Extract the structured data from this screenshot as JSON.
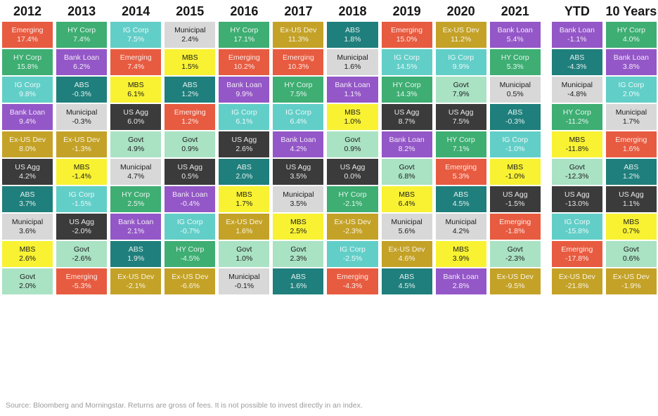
{
  "footer": {
    "source": "Source: Bloomberg and Morningstar. Returns are gross of fees. It is not possible to invest directly in an index."
  },
  "chart_data": {
    "type": "table",
    "description": "Periodic table of fixed-income asset class returns, ranked best to worst within each column",
    "legend_position": "none",
    "asset_styles": {
      "Emerging": {
        "bg": "#E75B40",
        "text": "light"
      },
      "HY Corp": {
        "bg": "#3EAE73",
        "text": "light"
      },
      "IG Corp": {
        "bg": "#62CEC8",
        "text": "light"
      },
      "Bank Loan": {
        "bg": "#9457C7",
        "text": "light"
      },
      "Ex-US Dev": {
        "bg": "#C4A227",
        "text": "light"
      },
      "US Agg": {
        "bg": "#3B3B3B",
        "text": "light"
      },
      "ABS": {
        "bg": "#1F7F7C",
        "text": "light"
      },
      "Municipal": {
        "bg": "#D8D8D8",
        "text": "dark"
      },
      "MBS": {
        "bg": "#F8F233",
        "text": "dark"
      },
      "Govt": {
        "bg": "#AAE2C4",
        "text": "dark"
      }
    },
    "columns": [
      {
        "label": "2012",
        "cells": [
          {
            "asset": "Emerging",
            "value": "17.4%"
          },
          {
            "asset": "HY Corp",
            "value": "15.8%"
          },
          {
            "asset": "IG Corp",
            "value": "9.8%"
          },
          {
            "asset": "Bank Loan",
            "value": "9.4%"
          },
          {
            "asset": "Ex-US Dev",
            "value": "8.0%"
          },
          {
            "asset": "US Agg",
            "value": "4.2%"
          },
          {
            "asset": "ABS",
            "value": "3.7%"
          },
          {
            "asset": "Municipal",
            "value": "3.6%"
          },
          {
            "asset": "MBS",
            "value": "2.6%"
          },
          {
            "asset": "Govt",
            "value": "2.0%"
          }
        ]
      },
      {
        "label": "2013",
        "cells": [
          {
            "asset": "HY Corp",
            "value": "7.4%"
          },
          {
            "asset": "Bank Loan",
            "value": "6.2%"
          },
          {
            "asset": "ABS",
            "value": "-0.3%"
          },
          {
            "asset": "Municipal",
            "value": "-0.3%"
          },
          {
            "asset": "Ex-US Dev",
            "value": "-1.3%"
          },
          {
            "asset": "MBS",
            "value": "-1.4%"
          },
          {
            "asset": "IG Corp",
            "value": "-1.5%"
          },
          {
            "asset": "US Agg",
            "value": "-2.0%"
          },
          {
            "asset": "Govt",
            "value": "-2.6%"
          },
          {
            "asset": "Emerging",
            "value": "-5.3%"
          }
        ]
      },
      {
        "label": "2014",
        "cells": [
          {
            "asset": "IG Corp",
            "value": "7.5%"
          },
          {
            "asset": "Emerging",
            "value": "7.4%"
          },
          {
            "asset": "MBS",
            "value": "6.1%"
          },
          {
            "asset": "US Agg",
            "value": "6.0%"
          },
          {
            "asset": "Govt",
            "value": "4.9%"
          },
          {
            "asset": "Municipal",
            "value": "4.7%"
          },
          {
            "asset": "HY Corp",
            "value": "2.5%"
          },
          {
            "asset": "Bank Loan",
            "value": "2.1%"
          },
          {
            "asset": "ABS",
            "value": "1.9%"
          },
          {
            "asset": "Ex-US Dev",
            "value": "-2.1%"
          }
        ]
      },
      {
        "label": "2015",
        "cells": [
          {
            "asset": "Municipal",
            "value": "2.4%"
          },
          {
            "asset": "MBS",
            "value": "1.5%"
          },
          {
            "asset": "ABS",
            "value": "1.2%"
          },
          {
            "asset": "Emerging",
            "value": "1.2%"
          },
          {
            "asset": "Govt",
            "value": "0.9%"
          },
          {
            "asset": "US Agg",
            "value": "0.5%"
          },
          {
            "asset": "Bank Loan",
            "value": "-0.4%"
          },
          {
            "asset": "IG Corp",
            "value": "-0.7%"
          },
          {
            "asset": "HY Corp",
            "value": "-4.5%"
          },
          {
            "asset": "Ex-US Dev",
            "value": "-6.6%"
          }
        ]
      },
      {
        "label": "2016",
        "cells": [
          {
            "asset": "HY Corp",
            "value": "17.1%"
          },
          {
            "asset": "Emerging",
            "value": "10.2%"
          },
          {
            "asset": "Bank Loan",
            "value": "9.9%"
          },
          {
            "asset": "IG Corp",
            "value": "6.1%"
          },
          {
            "asset": "US Agg",
            "value": "2.6%"
          },
          {
            "asset": "ABS",
            "value": "2.0%"
          },
          {
            "asset": "MBS",
            "value": "1.7%"
          },
          {
            "asset": "Ex-US Dev",
            "value": "1.6%"
          },
          {
            "asset": "Govt",
            "value": "1.0%"
          },
          {
            "asset": "Municipal",
            "value": "-0.1%"
          }
        ]
      },
      {
        "label": "2017",
        "cells": [
          {
            "asset": "Ex-US Dev",
            "value": "11.3%"
          },
          {
            "asset": "Emerging",
            "value": "10.3%"
          },
          {
            "asset": "HY Corp",
            "value": "7.5%"
          },
          {
            "asset": "IG Corp",
            "value": "6.4%"
          },
          {
            "asset": "Bank Loan",
            "value": "4.2%"
          },
          {
            "asset": "US Agg",
            "value": "3.5%"
          },
          {
            "asset": "Municipal",
            "value": "3.5%"
          },
          {
            "asset": "MBS",
            "value": "2.5%"
          },
          {
            "asset": "Govt",
            "value": "2.3%"
          },
          {
            "asset": "ABS",
            "value": "1.6%"
          }
        ]
      },
      {
        "label": "2018",
        "cells": [
          {
            "asset": "ABS",
            "value": "1.8%"
          },
          {
            "asset": "Municipal",
            "value": "1.6%"
          },
          {
            "asset": "Bank Loan",
            "value": "1.1%"
          },
          {
            "asset": "MBS",
            "value": "1.0%"
          },
          {
            "asset": "Govt",
            "value": "0.9%"
          },
          {
            "asset": "US Agg",
            "value": "0.0%"
          },
          {
            "asset": "HY Corp",
            "value": "-2.1%"
          },
          {
            "asset": "Ex-US Dev",
            "value": "-2.3%"
          },
          {
            "asset": "IG Corp",
            "value": "-2.5%"
          },
          {
            "asset": "Emerging",
            "value": "-4.3%"
          }
        ]
      },
      {
        "label": "2019",
        "cells": [
          {
            "asset": "Emerging",
            "value": "15.0%"
          },
          {
            "asset": "IG Corp",
            "value": "14.5%"
          },
          {
            "asset": "HY Corp",
            "value": "14.3%"
          },
          {
            "asset": "US Agg",
            "value": "8.7%"
          },
          {
            "asset": "Bank Loan",
            "value": "8.2%"
          },
          {
            "asset": "Govt",
            "value": "6.8%"
          },
          {
            "asset": "MBS",
            "value": "6.4%"
          },
          {
            "asset": "Municipal",
            "value": "5.6%"
          },
          {
            "asset": "Ex-US Dev",
            "value": "4.6%"
          },
          {
            "asset": "ABS",
            "value": "4.5%"
          }
        ]
      },
      {
        "label": "2020",
        "cells": [
          {
            "asset": "Ex-US Dev",
            "value": "11.2%"
          },
          {
            "asset": "IG Corp",
            "value": "9.9%"
          },
          {
            "asset": "Govt",
            "value": "7.9%"
          },
          {
            "asset": "US Agg",
            "value": "7.5%"
          },
          {
            "asset": "HY Corp",
            "value": "7.1%"
          },
          {
            "asset": "Emerging",
            "value": "5.3%"
          },
          {
            "asset": "ABS",
            "value": "4.5%"
          },
          {
            "asset": "Municipal",
            "value": "4.2%"
          },
          {
            "asset": "MBS",
            "value": "3.9%"
          },
          {
            "asset": "Bank Loan",
            "value": "2.8%"
          }
        ]
      },
      {
        "label": "2021",
        "cells": [
          {
            "asset": "Bank Loan",
            "value": "5.4%"
          },
          {
            "asset": "HY Corp",
            "value": "5.3%"
          },
          {
            "asset": "Municipal",
            "value": "0.5%"
          },
          {
            "asset": "ABS",
            "value": "-0.3%"
          },
          {
            "asset": "IG Corp",
            "value": "-1.0%"
          },
          {
            "asset": "MBS",
            "value": "-1.0%"
          },
          {
            "asset": "US Agg",
            "value": "-1.5%"
          },
          {
            "asset": "Emerging",
            "value": "-1.8%"
          },
          {
            "asset": "Govt",
            "value": "-2.3%"
          },
          {
            "asset": "Ex-US Dev",
            "value": "-9.5%"
          }
        ]
      },
      {
        "label": "YTD",
        "cells": [
          {
            "asset": "Bank Loan",
            "value": "-1.1%"
          },
          {
            "asset": "ABS",
            "value": "-4.3%"
          },
          {
            "asset": "Municipal",
            "value": "-4.8%"
          },
          {
            "asset": "HY Corp",
            "value": "-11.2%"
          },
          {
            "asset": "MBS",
            "value": "-11.8%"
          },
          {
            "asset": "Govt",
            "value": "-12.3%"
          },
          {
            "asset": "US Agg",
            "value": "-13.0%"
          },
          {
            "asset": "IG Corp",
            "value": "-15.8%"
          },
          {
            "asset": "Emerging",
            "value": "-17.8%"
          },
          {
            "asset": "Ex-US Dev",
            "value": "-21.8%"
          }
        ]
      },
      {
        "label": "10 Years",
        "cells": [
          {
            "asset": "HY Corp",
            "value": "4.0%"
          },
          {
            "asset": "Bank Loan",
            "value": "3.8%"
          },
          {
            "asset": "IG Corp",
            "value": "2.0%"
          },
          {
            "asset": "Municipal",
            "value": "1.7%"
          },
          {
            "asset": "Emerging",
            "value": "1.6%"
          },
          {
            "asset": "ABS",
            "value": "1.2%"
          },
          {
            "asset": "US Agg",
            "value": "1.1%"
          },
          {
            "asset": "MBS",
            "value": "0.7%"
          },
          {
            "asset": "Govt",
            "value": "0.6%"
          },
          {
            "asset": "Ex-US Dev",
            "value": "-1.9%"
          }
        ]
      }
    ]
  }
}
